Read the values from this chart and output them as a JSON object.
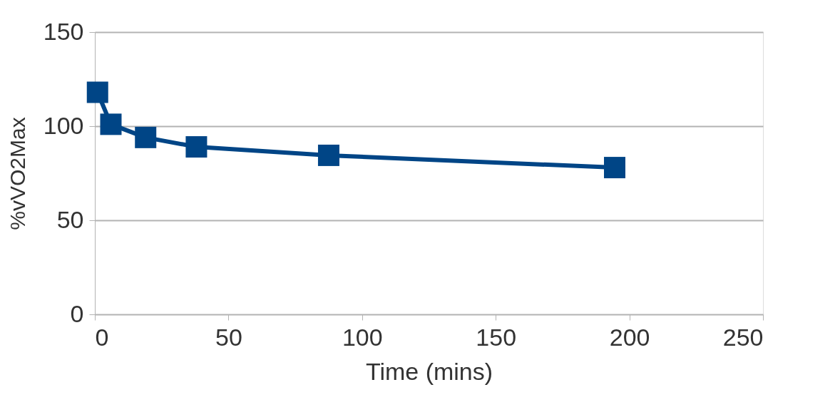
{
  "chart_data": {
    "type": "line",
    "xlabel": "Time (mins)",
    "ylabel": "%vVO2Max",
    "x": [
      1,
      6,
      19,
      38,
      87.5,
      194.5
    ],
    "series": [
      {
        "color": "#004586",
        "values": [
          118,
          101,
          94,
          89,
          84.5,
          78
        ]
      }
    ],
    "xlim": [
      0,
      250
    ],
    "xticks": [
      0,
      50,
      100,
      150,
      200,
      250
    ],
    "ylim": [
      0,
      150
    ],
    "yticks": [
      0,
      50,
      100,
      150
    ],
    "grid": "y",
    "marker": "square",
    "line_style": "solid",
    "legend": false
  }
}
